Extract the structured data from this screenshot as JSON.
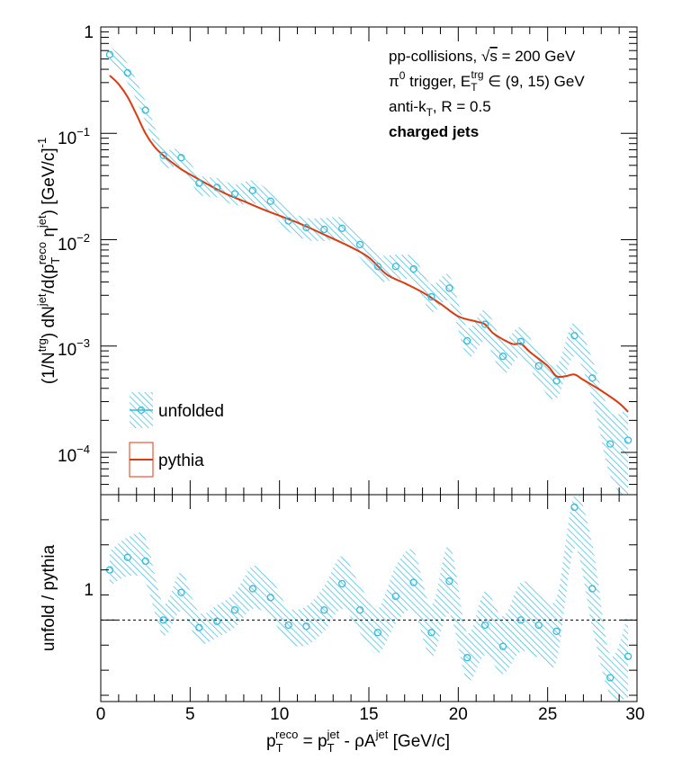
{
  "chart_data": [
    {
      "type": "scatter",
      "panel": "top",
      "ylabel_parts": {
        "a": "(1/N",
        "a_sup": "trg",
        "b": ") dN",
        "b_sup": "jet",
        "c": "/d(p",
        "c_sub": "T",
        "c_sup": "reco",
        "d": " η",
        "d_sup": "jet",
        "e": ") [GeV/c]",
        "e_sup": "-1"
      },
      "yscale": "log",
      "xlim": [
        0,
        30
      ],
      "ylim": [
        4e-05,
        1
      ],
      "ytick_labels": {
        "t0": {
          "base": "1",
          "exp": ""
        },
        "t1": {
          "base": "10",
          "exp": "−1"
        },
        "t2": {
          "base": "10",
          "exp": "−2"
        },
        "t3": {
          "base": "10",
          "exp": "−3"
        },
        "t4": {
          "base": "10",
          "exp": "−4"
        }
      },
      "annotations": {
        "line1_a": "pp-collisions, ",
        "line1_sqrt": "√",
        "line1_s": "s",
        "line1_b": " = 200 GeV",
        "line2_a": "π",
        "line2_sup": "0",
        "line2_b": " trigger, E",
        "line2_sub": "T",
        "line2_sup2": "trg",
        "line2_c": " ∈ (9, 15) GeV",
        "line3_a": "anti-k",
        "line3_sub": "T",
        "line3_b": ", R = 0.5",
        "line4": "charged jets"
      },
      "legend": {
        "unfolded": "unfolded",
        "pythia": "pythia",
        "position": "bottom-left"
      },
      "series": [
        {
          "name": "unfolded",
          "color": "#33bbdd",
          "x": [
            0.5,
            1.5,
            2.5,
            3.5,
            4.5,
            5.5,
            6.5,
            7.5,
            8.5,
            9.5,
            10.5,
            11.5,
            12.5,
            13.5,
            14.5,
            15.5,
            16.5,
            17.5,
            18.5,
            19.5,
            20.5,
            21.5,
            22.5,
            23.5,
            24.5,
            25.5,
            26.5,
            27.5,
            28.5,
            29.5
          ],
          "y": [
            0.55,
            0.37,
            0.165,
            0.062,
            0.059,
            0.034,
            0.031,
            0.027,
            0.029,
            0.023,
            0.015,
            0.013,
            0.0125,
            0.0128,
            0.009,
            0.0056,
            0.0056,
            0.0053,
            0.0029,
            0.0035,
            0.00112,
            0.0016,
            0.0008,
            0.0011,
            0.00065,
            0.00047,
            0.00125,
            0.0005,
            0.00012,
            0.00013
          ],
          "band_lo": [
            0.45,
            0.3,
            0.13,
            0.05,
            0.048,
            0.027,
            0.025,
            0.021,
            0.022,
            0.018,
            0.012,
            0.01,
            0.0097,
            0.0098,
            0.0068,
            0.0041,
            0.0042,
            0.004,
            0.0021,
            0.0026,
            0.0008,
            0.0011,
            0.00055,
            0.0008,
            0.00045,
            0.00032,
            0.0008,
            0.00032,
            6e-05,
            3.5e-05
          ],
          "band_hi": [
            0.66,
            0.45,
            0.2,
            0.075,
            0.07,
            0.041,
            0.038,
            0.033,
            0.036,
            0.028,
            0.019,
            0.016,
            0.016,
            0.016,
            0.0115,
            0.0073,
            0.0072,
            0.0068,
            0.0038,
            0.0046,
            0.0015,
            0.0022,
            0.00115,
            0.0015,
            0.0009,
            0.00066,
            0.0017,
            0.00075,
            0.00024,
            0.00026
          ]
        },
        {
          "name": "pythia",
          "color": "#dd3a0e",
          "x": [
            0.5,
            1.0,
            1.5,
            2.0,
            2.5,
            3.0,
            3.5,
            4.0,
            4.5,
            5.0,
            6.0,
            7.0,
            8.0,
            9.0,
            10.0,
            11.0,
            12.0,
            13.0,
            14.0,
            15.0,
            16.0,
            17.0,
            18.0,
            19.0,
            20.0,
            21.0,
            21.5,
            22.0,
            23.0,
            23.5,
            24.0,
            25.0,
            25.5,
            26.0,
            26.5,
            27.0,
            28.0,
            29.0,
            29.5
          ],
          "y": [
            0.35,
            0.29,
            0.22,
            0.15,
            0.1,
            0.075,
            0.062,
            0.053,
            0.046,
            0.041,
            0.033,
            0.027,
            0.023,
            0.0195,
            0.0168,
            0.0145,
            0.0122,
            0.0102,
            0.0085,
            0.0068,
            0.0047,
            0.0039,
            0.0032,
            0.0025,
            0.0019,
            0.0017,
            0.0016,
            0.0013,
            0.00105,
            0.00105,
            0.00088,
            0.00065,
            0.00052,
            0.00052,
            0.00054,
            0.00048,
            0.00038,
            0.00029,
            0.00024
          ]
        }
      ]
    },
    {
      "type": "scatter",
      "panel": "bottom",
      "ylabel": "unfold / pythia",
      "xlabel_parts": {
        "a": "p",
        "a_sub": "T",
        "a_sup": "reco",
        "b": " = p",
        "b_sub": "T",
        "b_sup": "jet",
        "c": " - ρA",
        "c_sup": "jet",
        "d": " [GeV/c]"
      },
      "xlim": [
        0,
        30
      ],
      "ylim": [
        0.35,
        2.0
      ],
      "xtick_labels": [
        "0",
        "5",
        "10",
        "15",
        "20",
        "25",
        "30"
      ],
      "ytick_label": "1",
      "reference_line": 1,
      "series": [
        {
          "name": "unfold / pythia",
          "color": "#33bbdd",
          "x": [
            0.5,
            1.5,
            2.5,
            3.5,
            4.5,
            5.5,
            6.5,
            7.5,
            8.5,
            9.5,
            10.5,
            11.5,
            12.5,
            13.5,
            14.5,
            15.5,
            16.5,
            17.5,
            18.5,
            19.5,
            20.5,
            21.5,
            22.5,
            23.5,
            24.5,
            25.5,
            26.5,
            27.5,
            28.5,
            29.5
          ],
          "y": [
            1.4,
            1.5,
            1.47,
            1.0,
            1.22,
            0.94,
            0.99,
            1.08,
            1.25,
            1.18,
            0.96,
            0.95,
            1.08,
            1.29,
            1.08,
            0.9,
            1.19,
            1.3,
            0.9,
            1.31,
            0.7,
            0.96,
            0.79,
            1.0,
            0.96,
            0.91,
            1.9,
            1.25,
            0.54,
            0.71
          ],
          "band_lo": [
            1.27,
            1.35,
            1.3,
            0.88,
            1.07,
            0.82,
            0.86,
            0.94,
            1.09,
            1.02,
            0.82,
            0.8,
            0.91,
            1.09,
            0.9,
            0.73,
            0.97,
            1.07,
            0.7,
            1.05,
            0.52,
            0.72,
            0.57,
            0.75,
            0.7,
            0.67,
            1.57,
            0.94,
            0.4,
            0.38
          ],
          "band_hi": [
            1.55,
            1.66,
            1.65,
            1.13,
            1.38,
            1.06,
            1.12,
            1.22,
            1.43,
            1.34,
            1.1,
            1.11,
            1.27,
            1.51,
            1.28,
            1.09,
            1.43,
            1.55,
            1.12,
            1.6,
            0.9,
            1.23,
            1.03,
            1.3,
            1.24,
            1.18,
            2.0,
            1.6,
            0.72,
            1.05
          ]
        }
      ]
    }
  ]
}
